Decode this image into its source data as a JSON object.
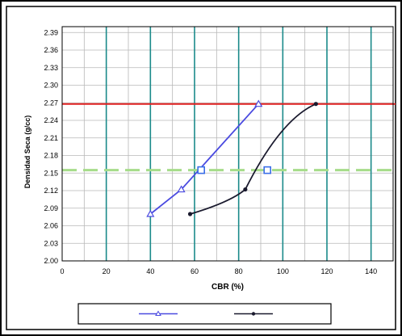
{
  "chart_data": {
    "type": "line",
    "title": "",
    "xlabel": "CBR (%)",
    "ylabel": "Densidad Seca (g/cc)",
    "xlim": [
      0,
      150
    ],
    "ylim": [
      2.0,
      2.4
    ],
    "x_ticks": [
      0,
      20,
      40,
      60,
      80,
      100,
      120,
      140
    ],
    "y_ticks": [
      2.0,
      2.03,
      2.06,
      2.09,
      2.12,
      2.15,
      2.18,
      2.21,
      2.24,
      2.27,
      2.3,
      2.33,
      2.36,
      2.39
    ],
    "x_tick_labels": [
      "0",
      "20",
      "40",
      "60",
      "80",
      "100",
      "120",
      "140"
    ],
    "y_tick_labels": [
      "2.00",
      "2.03",
      "2.06",
      "2.09",
      "2.12",
      "2.15",
      "2.18",
      "2.21",
      "2.24",
      "2.27",
      "2.30",
      "2.33",
      "2.36",
      "2.39"
    ],
    "grid": true,
    "legend_position": "bottom",
    "series": [
      {
        "name": "",
        "color": "#4a4ae0",
        "marker": "triangle",
        "x": [
          40,
          54,
          89
        ],
        "y": [
          2.08,
          2.122,
          2.268
        ]
      },
      {
        "name": "",
        "color": "#1a1a2e",
        "marker": "dot",
        "x": [
          58,
          83,
          115
        ],
        "y": [
          2.08,
          2.122,
          2.268
        ]
      }
    ],
    "open_markers": [
      {
        "x": 63,
        "y": 2.155
      },
      {
        "x": 93,
        "y": 2.155
      }
    ],
    "reference_lines": [
      {
        "y": 2.268,
        "color": "#e02020",
        "style": "solid"
      },
      {
        "y": 2.155,
        "color": "#a6dc8a",
        "style": "dashed"
      }
    ],
    "colors": {
      "vertical_grid": "#1a8a8a",
      "horizontal_grid": "#b8b8b8",
      "open_marker": "#3a6ee8"
    }
  }
}
